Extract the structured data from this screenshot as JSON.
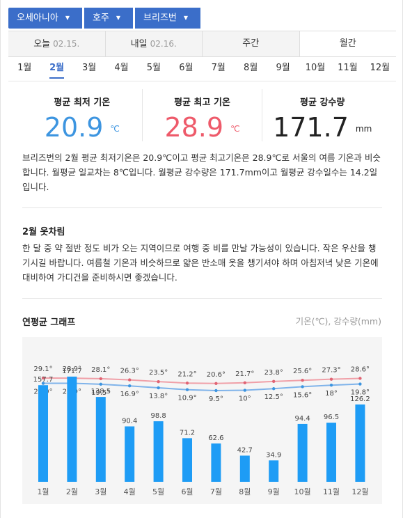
{
  "breadcrumb": {
    "items": [
      {
        "label": "오세아니아"
      },
      {
        "label": "호주"
      },
      {
        "label": "브리즈번"
      }
    ]
  },
  "day_tabs": [
    {
      "label": "오늘",
      "date": "02.15."
    },
    {
      "label": "내일",
      "date": "02.16."
    },
    {
      "label": "주간",
      "date": ""
    },
    {
      "label": "월간",
      "date": ""
    }
  ],
  "months": [
    "1월",
    "2월",
    "3월",
    "4월",
    "5월",
    "6월",
    "7월",
    "8월",
    "9월",
    "10월",
    "11월",
    "12월"
  ],
  "selected_month": "2월",
  "stats": {
    "min": {
      "label": "평균 최저 기온",
      "value": "20.9",
      "unit": "℃"
    },
    "max": {
      "label": "평균 최고 기온",
      "value": "28.9",
      "unit": "℃"
    },
    "rain": {
      "label": "평균 강수량",
      "value": "171.7",
      "unit": "mm"
    }
  },
  "summary": "브리즈번의 2월 평균 최저기온은 20.9℃이고 평균 최고기온은 28.9℃로 서울의 여름 기온과 비슷합니다. 월평균 일교차는 8℃입니다. 월평균 강수량은 171.7mm이고 월평균 강수일수는 14.2일입니다.",
  "clothing": {
    "title": "2월 옷차림",
    "text": "한 달 중 약 절반 정도 비가 오는 지역이므로 여행 중 비를 만날 가능성이 있습니다. 작은 우산을 챙기시길 바랍니다. 여름철 기온과 비슷하므로 얇은 반소매 옷을 챙기셔야 하며 아침저녁 낮은 기온에 대비하여 가디건을 준비하시면 좋겠습니다."
  },
  "graph": {
    "title": "연평균 그래프",
    "legend": "기온(℃), 강수량(mm)"
  },
  "colors": {
    "accent": "#3b6ec9",
    "max_line": "#f0a0a8",
    "min_line": "#7fb3ea",
    "bar": "#1e9cf5"
  },
  "chart_data": {
    "type": "bar",
    "categories": [
      "1월",
      "2월",
      "3월",
      "4월",
      "5월",
      "6월",
      "7월",
      "8월",
      "9월",
      "10월",
      "11월",
      "12월"
    ],
    "series": [
      {
        "values": [
          29.1,
          28.9,
          28.1,
          26.3,
          23.5,
          21.2,
          20.6,
          21.7,
          23.8,
          25.6,
          27.3,
          28.6
        ],
        "labels": [
          "29.1°",
          "28.9°",
          "28.1°",
          "26.3°",
          "23.5°",
          "21.2°",
          "20.6°",
          "21.7°",
          "23.8°",
          "25.6°",
          "27.3°",
          "28.6°"
        ]
      },
      {
        "values": [
          20.9,
          20.9,
          19.5,
          16.9,
          13.8,
          10.9,
          9.5,
          10,
          12.5,
          15.6,
          18,
          19.8
        ],
        "labels": [
          "20.9°",
          "20.9°",
          "19.5°",
          "16.9°",
          "13.8°",
          "10.9°",
          "9.5°",
          "10°",
          "12.5°",
          "15.6°",
          "18°",
          "19.8°"
        ]
      },
      {
        "values": [
          157.7,
          171.7,
          138.5,
          90.4,
          98.8,
          71.2,
          62.6,
          42.7,
          34.9,
          94.4,
          96.5,
          126.2
        ]
      }
    ]
  }
}
